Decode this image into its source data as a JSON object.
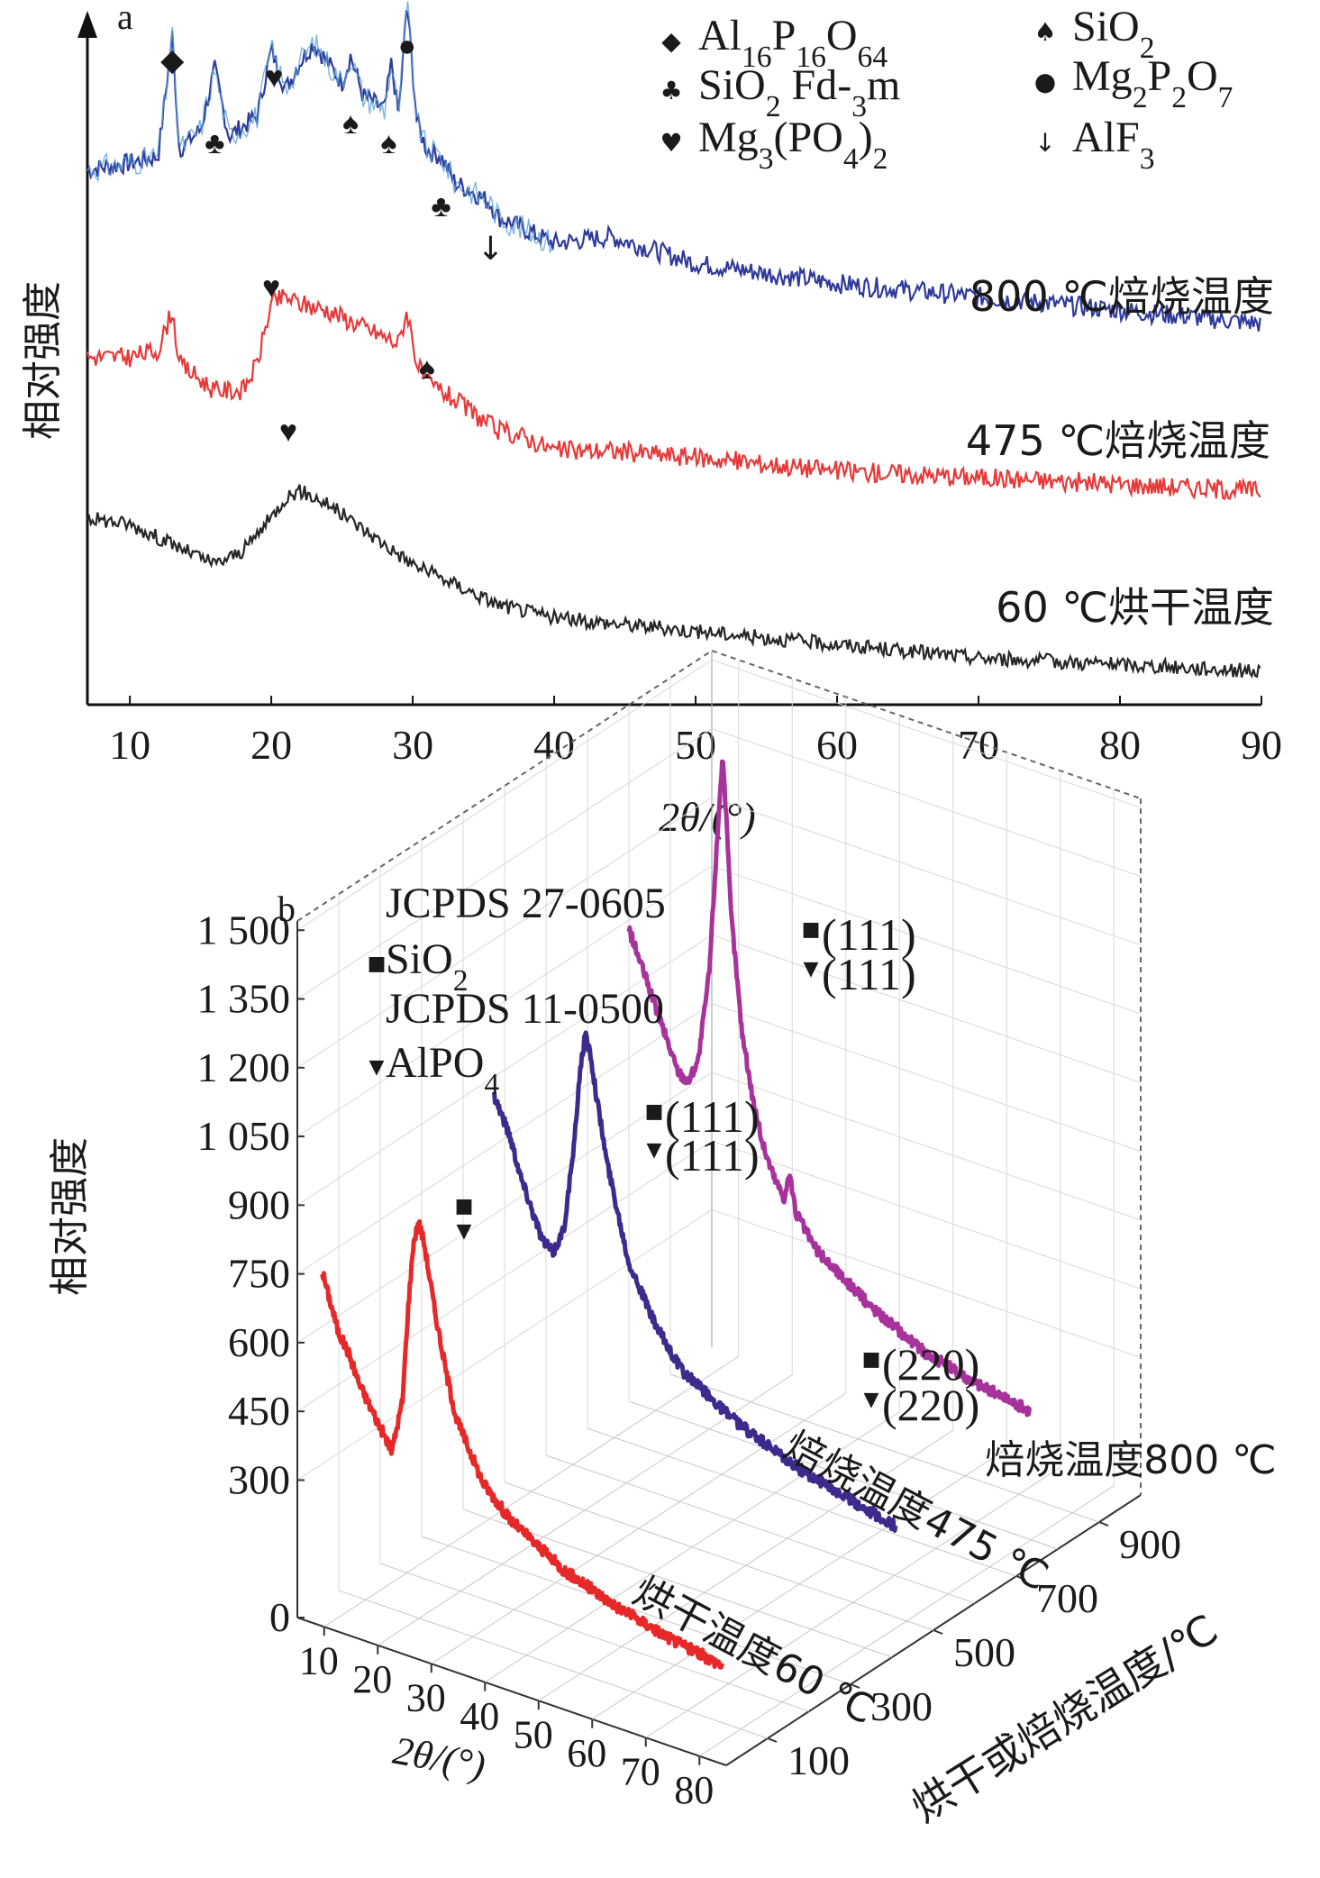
{
  "panel_a": {
    "label": "a",
    "ylabel": "相对强度",
    "xlabel": "2θ/(°)",
    "legend": [
      {
        "symbol": "◆",
        "text": "Al16P16O64"
      },
      {
        "symbol": "♣",
        "text": "SiO2 Fd-3m"
      },
      {
        "symbol": "♥",
        "text": "Mg3(PO4)2"
      },
      {
        "symbol": "♠",
        "text": "SiO2"
      },
      {
        "symbol": "●",
        "text": "Mg2P2O7"
      },
      {
        "symbol": "↓",
        "text": "AlF3"
      }
    ],
    "annotations": [
      "◆",
      "♣",
      "♥",
      "♠",
      "♠",
      "●",
      "♣",
      "↓",
      "♥",
      "♠",
      "♥"
    ]
  },
  "panel_b": {
    "label": "b",
    "ylabel": "相对强度",
    "xlabel": "2θ/(°)",
    "zlabel": "烘干或焙烧温度/℃",
    "legend": [
      {
        "symbol": "",
        "text": "JCPDS 27-0605"
      },
      {
        "symbol": "■",
        "text": "SiO2"
      },
      {
        "symbol": "",
        "text": "JCPDS 11-0500"
      },
      {
        "symbol": "▼",
        "text": "AlPO4"
      }
    ],
    "peak_labels": [
      "(111)",
      "(111)",
      "(111)",
      "(111)",
      "(220)",
      "(220)"
    ]
  },
  "chart_data": [
    {
      "type": "line",
      "title": "",
      "xlabel": "2θ/(°)",
      "ylabel": "相对强度",
      "xlim": [
        7,
        90
      ],
      "xticks": [
        10,
        20,
        30,
        40,
        50,
        60,
        70,
        80,
        90
      ],
      "yticks": [],
      "grid": false,
      "series": [
        {
          "name": "800 ℃焙烧温度",
          "color": "#2f3a9a",
          "x": [
            7,
            10,
            12,
            13,
            13.5,
            15,
            16,
            17,
            19,
            20,
            21,
            22,
            23,
            24,
            25,
            25.6,
            26.5,
            28,
            28.5,
            29,
            29.6,
            30.3,
            31,
            32,
            33,
            34,
            35.5,
            36,
            38,
            40,
            44,
            50,
            60,
            70,
            80,
            90
          ],
          "y": [
            0.8,
            0.81,
            0.82,
            1.0,
            0.83,
            0.86,
            0.95,
            0.85,
            0.88,
            0.98,
            0.92,
            0.96,
            0.99,
            0.96,
            0.93,
            0.97,
            0.91,
            0.89,
            0.96,
            0.88,
            1.05,
            0.87,
            0.83,
            0.82,
            0.78,
            0.77,
            0.75,
            0.73,
            0.71,
            0.69,
            0.7,
            0.66,
            0.63,
            0.61,
            0.59,
            0.57
          ]
        },
        {
          "name": "475 ℃焙烧温度",
          "color": "#e63a3a",
          "x": [
            7,
            10,
            12,
            13,
            13.5,
            16,
            18,
            19,
            20,
            21,
            22,
            24,
            26,
            28,
            29,
            29.6,
            30.3,
            31,
            32,
            34,
            36,
            38,
            40,
            44,
            50,
            60,
            70,
            80,
            90
          ],
          "y": [
            0.52,
            0.52,
            0.53,
            0.59,
            0.51,
            0.47,
            0.47,
            0.51,
            0.6,
            0.61,
            0.6,
            0.59,
            0.57,
            0.55,
            0.54,
            0.59,
            0.51,
            0.48,
            0.47,
            0.44,
            0.41,
            0.4,
            0.38,
            0.38,
            0.37,
            0.35,
            0.34,
            0.33,
            0.32
          ]
        },
        {
          "name": "60 ℃烘干温度",
          "color": "#262626",
          "x": [
            7,
            10,
            12,
            14,
            16,
            18,
            20,
            21,
            22,
            23,
            24,
            26,
            28,
            30,
            32,
            34,
            36,
            40,
            45,
            50,
            55,
            60,
            70,
            80,
            90
          ],
          "y": [
            0.28,
            0.27,
            0.25,
            0.23,
            0.21,
            0.23,
            0.28,
            0.31,
            0.32,
            0.31,
            0.3,
            0.27,
            0.24,
            0.21,
            0.19,
            0.17,
            0.15,
            0.13,
            0.12,
            0.11,
            0.1,
            0.09,
            0.07,
            0.06,
            0.05
          ]
        }
      ],
      "labels": [
        "800 ℃焙烧温度",
        "475 ℃焙烧温度",
        "60 ℃烘干温度"
      ]
    },
    {
      "type": "line",
      "title": "",
      "xlabel": "2θ/(°)",
      "ylabel": "相对强度",
      "zlabel": "烘干或焙烧温度/℃",
      "xlim": [
        5,
        80
      ],
      "ylim": [
        0,
        1500
      ],
      "xticks": [
        10,
        20,
        30,
        40,
        50,
        60,
        70,
        80
      ],
      "yticks": [
        0,
        300,
        450,
        600,
        750,
        900,
        "1 050",
        "1 200",
        "1 350",
        "1 500"
      ],
      "zticks": [
        100,
        300,
        500,
        700,
        900
      ],
      "grid": true,
      "series": [
        {
          "name": "烘干温度60 ℃",
          "color": "#e62828",
          "z": 60,
          "x": [
            5,
            8,
            10,
            12,
            14,
            16,
            18,
            20,
            21,
            22,
            23,
            24,
            26,
            28,
            30,
            35,
            40,
            50,
            60,
            70,
            80
          ],
          "y": [
            720,
            600,
            560,
            500,
            460,
            420,
            380,
            500,
            700,
            850,
            900,
            860,
            720,
            600,
            500,
            380,
            320,
            250,
            210,
            180,
            160
          ]
        },
        {
          "name": "焙烧温度475 ℃",
          "color": "#3d2a8c",
          "z": 475,
          "x": [
            5,
            8,
            10,
            12,
            14,
            16,
            18,
            20,
            21,
            22,
            23,
            24,
            26,
            28,
            30,
            35,
            40,
            50,
            60,
            70,
            80
          ],
          "y": [
            860,
            780,
            700,
            640,
            580,
            560,
            620,
            820,
            980,
            1060,
            1020,
            940,
            800,
            700,
            600,
            480,
            400,
            330,
            280,
            250,
            220
          ]
        },
        {
          "name": "焙烧温度800 ℃",
          "color": "#a8329c",
          "z": 800,
          "x": [
            5,
            8,
            10,
            12,
            14,
            16,
            18,
            20,
            21,
            22,
            22.5,
            23,
            24,
            26,
            28,
            30,
            32,
            34,
            35,
            36,
            40,
            50,
            60,
            70,
            80
          ],
          "y": [
            1030,
            940,
            880,
            820,
            760,
            740,
            800,
            1000,
            1200,
            1400,
            1480,
            1380,
            1150,
            900,
            760,
            660,
            600,
            560,
            620,
            540,
            470,
            390,
            330,
            300,
            280
          ]
        }
      ],
      "labels": [
        "烘干温度60 ℃",
        "焙烧温度475 ℃",
        "焙烧温度800 ℃"
      ]
    }
  ]
}
